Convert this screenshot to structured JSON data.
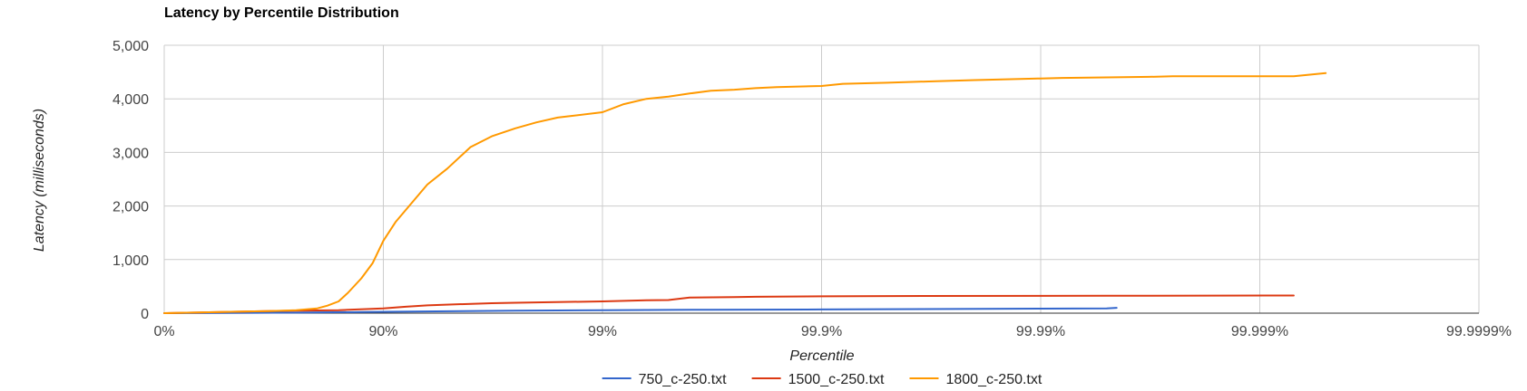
{
  "chart_data": {
    "type": "line",
    "title": "Latency by Percentile Distribution",
    "xlabel": "Percentile",
    "ylabel": "Latency (milliseconds)",
    "x_scale": "reciprocal (100 - percentile)",
    "x_ticks": [
      "0%",
      "90%",
      "99%",
      "99.9%",
      "99.99%",
      "99.999%",
      "99.9999%"
    ],
    "x_tick_values": [
      0,
      90,
      99,
      99.9,
      99.99,
      99.999,
      99.9999
    ],
    "ylim": [
      0,
      5000
    ],
    "y_ticks": [
      "0",
      "1,000",
      "2,000",
      "3,000",
      "4,000",
      "5,000"
    ],
    "y_tick_values": [
      0,
      1000,
      2000,
      3000,
      4000,
      5000
    ],
    "grid": true,
    "legend_position": "bottom",
    "series": [
      {
        "name": "750_c-250.txt",
        "color": "#3366cc",
        "x": [
          0,
          75,
          87.4,
          90,
          95,
          97.5,
          99,
          99.5,
          99.68,
          99.9,
          99.95,
          99.99,
          99.995,
          99.9955
        ],
        "y": [
          0,
          10,
          20,
          25,
          35,
          45,
          55,
          60,
          65,
          70,
          75,
          85,
          90,
          100
        ]
      },
      {
        "name": "1500_c-250.txt",
        "color": "#dc3912",
        "x": [
          0,
          68,
          75,
          84,
          90,
          92.1,
          93.7,
          95,
          96.8,
          97.5,
          99,
          99.37,
          99.5,
          99.6,
          99.75,
          99.8,
          99.9,
          99.95,
          99.99,
          99.995,
          99.9993
        ],
        "y": [
          0,
          40,
          45,
          55,
          90,
          120,
          145,
          160,
          185,
          195,
          220,
          240,
          245,
          290,
          300,
          305,
          315,
          320,
          322,
          325,
          330
        ]
      },
      {
        "name": "1800_c-250.txt",
        "color": "#ff9900",
        "x": [
          0,
          68,
          75,
          80,
          82,
          84,
          85.5,
          87.4,
          88.8,
          90,
          91.2,
          93.7,
          94.9,
          96,
          96.8,
          97.5,
          98,
          98.4,
          99,
          99.2,
          99.37,
          99.5,
          99.55,
          99.6,
          99.68,
          99.75,
          99.8,
          99.84,
          99.9,
          99.92,
          99.95,
          99.97,
          99.98,
          99.99,
          99.992,
          99.995,
          99.9968,
          99.9975,
          99.9993,
          99.9995
        ],
        "y": [
          0,
          40,
          55,
          90,
          140,
          220,
          380,
          650,
          930,
          1350,
          1700,
          2400,
          2700,
          3100,
          3300,
          3450,
          3560,
          3650,
          3750,
          3900,
          4000,
          4040,
          4070,
          4100,
          4150,
          4170,
          4200,
          4220,
          4240,
          4280,
          4300,
          4330,
          4350,
          4380,
          4390,
          4400,
          4410,
          4420,
          4420,
          4480
        ]
      }
    ]
  }
}
